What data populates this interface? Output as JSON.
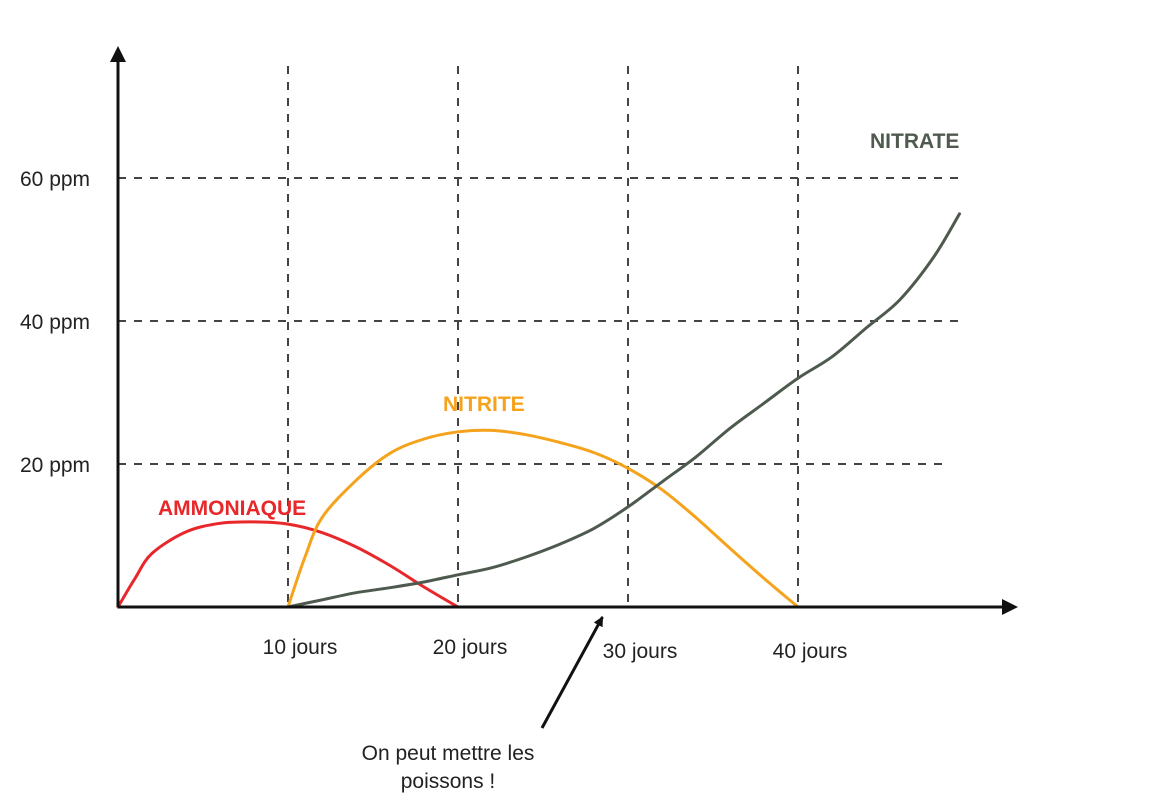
{
  "chart_data": {
    "type": "line",
    "xlabel": "",
    "ylabel": "",
    "xlim": [
      0,
      50
    ],
    "ylim": [
      0,
      70
    ],
    "grid": true,
    "x_ticks": [
      {
        "value": 10,
        "label": "10 jours"
      },
      {
        "value": 20,
        "label": "20 jours"
      },
      {
        "value": 30,
        "label": "30 jours"
      },
      {
        "value": 40,
        "label": "40 jours"
      }
    ],
    "y_ticks": [
      {
        "value": 20,
        "label": "20 ppm"
      },
      {
        "value": 40,
        "label": "40 ppm"
      },
      {
        "value": 60,
        "label": "60 ppm"
      }
    ],
    "series": [
      {
        "name": "AMMONIAQUE",
        "color": "#e8272b",
        "x": [
          0,
          1,
          2,
          4,
          6,
          8,
          10,
          12,
          14,
          16,
          18,
          20
        ],
        "y": [
          0,
          4,
          7.5,
          10.5,
          11.7,
          11.9,
          11.6,
          10.4,
          8.4,
          5.8,
          2.8,
          0
        ]
      },
      {
        "name": "NITRITE",
        "color": "#f5a31c",
        "x": [
          10,
          11,
          12,
          14,
          16,
          18,
          20,
          22,
          24,
          26,
          28,
          30,
          32,
          34,
          36,
          38,
          40
        ],
        "y": [
          0,
          7,
          12.5,
          17.7,
          21.5,
          23.5,
          24.5,
          24.7,
          24.1,
          23,
          21.6,
          19.4,
          16.4,
          12.5,
          8.2,
          4,
          0
        ]
      },
      {
        "name": "NITRATE",
        "color": "#4f5a4f",
        "x": [
          10,
          12,
          14,
          16,
          18,
          20,
          22,
          24,
          26,
          28,
          30,
          32,
          34,
          36,
          38,
          40,
          42,
          44,
          46,
          48,
          49.5
        ],
        "y": [
          0,
          1,
          2,
          2.7,
          3.5,
          4.5,
          5.5,
          7,
          8.8,
          11,
          14,
          17.5,
          21,
          25,
          28.5,
          32,
          35,
          39,
          43,
          49,
          55
        ]
      }
    ],
    "annotations": [
      {
        "lines": [
          "On peut mettre les",
          "poissons !"
        ],
        "x": 28.5
      }
    ]
  }
}
